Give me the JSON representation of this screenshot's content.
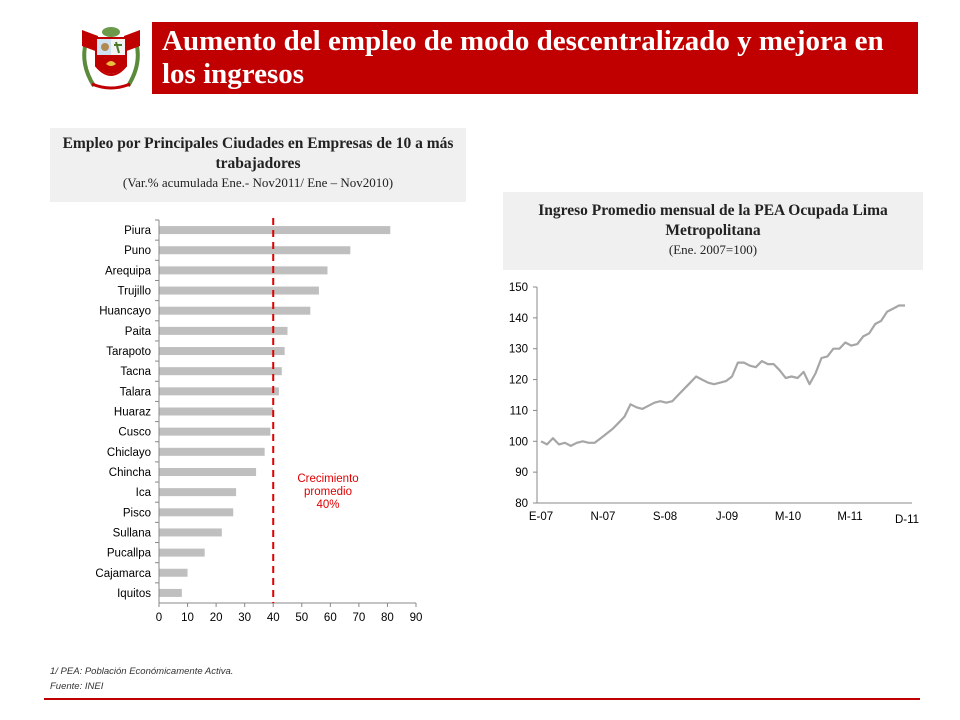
{
  "header": {
    "title": "Aumento del empleo de modo descentralizado y mejora en los ingresos",
    "crest_icon": "peru-coat-of-arms-icon",
    "accent_color": "#c00000"
  },
  "chart_data": [
    {
      "type": "bar",
      "orientation": "horizontal",
      "title": "Empleo por Principales Ciudades en Empresas de 10 a más trabajadores",
      "subtitle": "(Var.% acumulada Ene.- Nov2011/ Ene – Nov2010)",
      "categories": [
        "Piura",
        "Puno",
        "Arequipa",
        "Trujillo",
        "Huancayo",
        "Paita",
        "Tarapoto",
        "Tacna",
        "Talara",
        "Huaraz",
        "Cusco",
        "Chiclayo",
        "Chincha",
        "Ica",
        "Pisco",
        "Sullana",
        "Pucallpa",
        "Cajamarca",
        "Iquitos"
      ],
      "values": [
        81,
        67,
        59,
        56,
        53,
        45,
        44,
        43,
        42,
        40,
        39,
        37,
        34,
        27,
        26,
        22,
        16,
        10,
        8
      ],
      "xlim": [
        0,
        90
      ],
      "xticks": [
        0,
        10,
        20,
        30,
        40,
        50,
        60,
        70,
        80,
        90
      ],
      "bar_color": "#bfbfbf",
      "reference_line": {
        "value": 40,
        "label_lines": [
          "Crecimiento",
          "promedio",
          "40%"
        ],
        "color": "#e00000"
      },
      "grid": false
    },
    {
      "type": "line",
      "title": "Ingreso Promedio mensual de la PEA Ocupada Lima Metropolitana",
      "subtitle": "(Ene. 2007=100)",
      "x_tick_labels": [
        "E-07",
        "N-07",
        "S-08",
        "J-09",
        "M-10",
        "M-11",
        "D-11"
      ],
      "ylim": [
        80,
        150
      ],
      "yticks": [
        80,
        90,
        100,
        110,
        120,
        130,
        140,
        150
      ],
      "line_color": "#a6a6a6",
      "grid": false,
      "values": [
        100,
        99,
        101,
        99,
        99.5,
        98.5,
        99.5,
        100,
        99.5,
        99.5,
        101,
        102.5,
        104,
        106,
        108,
        112,
        111,
        110.5,
        111.5,
        112.5,
        113,
        112.5,
        113,
        115,
        117,
        119,
        121,
        120,
        119,
        118.5,
        119,
        119.5,
        121,
        125.5,
        125.5,
        124.5,
        124,
        126,
        125,
        125,
        123,
        120.5,
        121,
        120.5,
        122.5,
        118.5,
        122,
        127,
        127.5,
        130,
        130,
        132,
        131,
        131.5,
        134,
        135,
        138,
        139,
        142,
        143,
        144,
        144
      ]
    }
  ],
  "footnotes": {
    "note": "1/ PEA: Población Económicamente Activa.",
    "source": "Fuente: INEI"
  }
}
